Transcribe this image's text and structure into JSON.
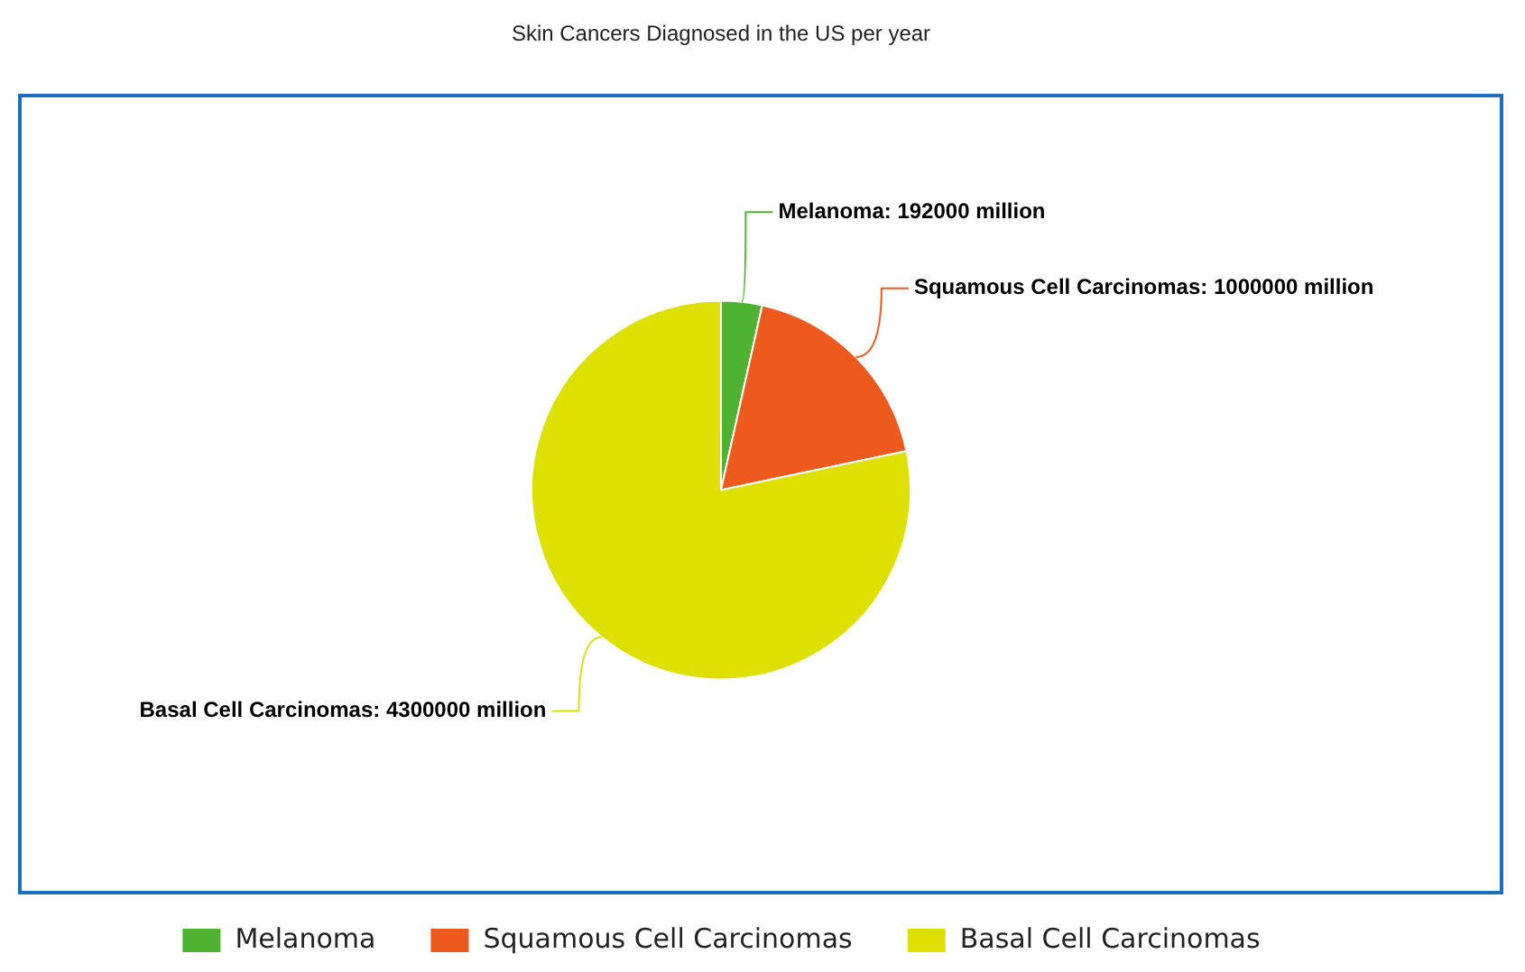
{
  "chart_data": {
    "type": "pie",
    "title": "Skin Cancers Diagnosed in the US per year",
    "categories": [
      "Melanoma",
      "Squamous Cell Carcinomas",
      "Basal Cell Carcinomas"
    ],
    "values": [
      192000,
      1000000,
      4300000
    ],
    "colors": [
      "#4db330",
      "#ee5a1e",
      "#dde000"
    ],
    "value_labels": [
      "Melanoma: 192000 million",
      "Squamous Cell Carcinomas: 1000000 million",
      "Basal Cell Carcinomas: 4300000 million"
    ],
    "legend": "bottom"
  }
}
